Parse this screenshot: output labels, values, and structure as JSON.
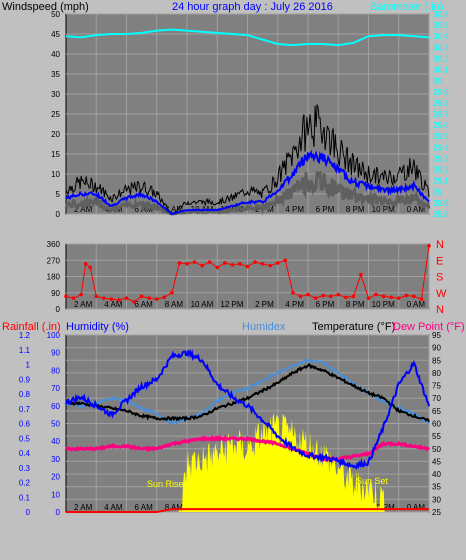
{
  "panel1": {
    "left_label": "Windspeed (mph)",
    "title": "24 hour graph day : July 26 2016",
    "right_label": "Barometer (.in)"
  },
  "panel3": {
    "rain_label": "Rainfall (.in)",
    "hum_label": "Humidity (%)",
    "humidex_label": "Humidex",
    "temp_label": "Temperature (°F)",
    "dew_label": "Dew Point (°F)",
    "sunrise_label": "Sun Rise",
    "sunset_label": "Sun Set"
  },
  "time_labels": [
    "2 AM",
    "4 AM",
    "6 AM",
    "8 AM",
    "10 AM",
    "12 PM",
    "2 PM",
    "4 PM",
    "6 PM",
    "8 PM",
    "10 PM",
    "0 AM"
  ],
  "colors": {
    "background": "#c0c0c0",
    "plot": "#808080",
    "wind_gust": "#000000",
    "wind_avg": "#0000ff",
    "wind_min": "#606060",
    "barometer": "#00ffff",
    "direction": "#ff0000",
    "humidity": "#0000ff",
    "humidex": "#4a8fd8",
    "temperature": "#000000",
    "dewpoint": "#ff0080",
    "solar": "#ffff00",
    "rain": "#ff0000"
  },
  "chart_data": [
    {
      "type": "line",
      "title": "24 hour graph day : July 26 2016",
      "xlabel": "",
      "x_ticks": [
        "2 AM",
        "4 AM",
        "6 AM",
        "8 AM",
        "10 AM",
        "12 PM",
        "2 PM",
        "4 PM",
        "6 PM",
        "8 PM",
        "10 PM",
        "0 AM"
      ],
      "x_hours": [
        0,
        1,
        2,
        3,
        4,
        5,
        6,
        7,
        8,
        9,
        10,
        11,
        12,
        13,
        14,
        15,
        16,
        17,
        18,
        19,
        20,
        21,
        22,
        23,
        24
      ],
      "left_axis": {
        "label": "Windspeed (mph)",
        "range": [
          0,
          50
        ],
        "ticks": [
          0,
          5,
          10,
          15,
          20,
          25,
          30,
          35,
          40,
          45,
          50
        ]
      },
      "right_axis": {
        "label": "Barometer (.in)",
        "range": [
          28.8,
          30.6
        ],
        "ticks": [
          "28.8",
          "28.9",
          "29",
          "29.1",
          "29.2",
          "29.3",
          "29.4",
          "29.5",
          "29.6",
          "29.7",
          "29.8",
          "29.9",
          "30",
          "30.1",
          "30.2",
          "30.3",
          "30.4",
          "30.5",
          "30.6"
        ]
      },
      "series": [
        {
          "name": "Windspeed (mph)",
          "axis": "left",
          "values": [
            6,
            8,
            7,
            4,
            6,
            7,
            5,
            0,
            3,
            3,
            3,
            4,
            6,
            5,
            9,
            15,
            22,
            22,
            16,
            12,
            10,
            9,
            10,
            12,
            5
          ]
        },
        {
          "name": "",
          "axis": "left",
          "values": [
            4,
            5,
            5,
            2,
            4,
            5,
            3,
            0,
            1,
            1,
            1,
            2,
            3,
            3,
            6,
            10,
            15,
            14,
            11,
            8,
            7,
            6,
            6,
            7,
            3
          ]
        },
        {
          "name": "Barometer (.in)",
          "axis": "right",
          "values": [
            30.4,
            30.39,
            30.41,
            30.42,
            30.42,
            30.43,
            30.45,
            30.46,
            30.45,
            30.44,
            30.43,
            30.42,
            30.41,
            30.37,
            30.33,
            30.32,
            30.33,
            30.33,
            30.32,
            30.34,
            30.4,
            30.41,
            30.41,
            30.4,
            30.39
          ]
        }
      ]
    },
    {
      "type": "scatter",
      "ylabel": "",
      "y_ticks": [
        0,
        90,
        180,
        270,
        360
      ],
      "y_range": [
        0,
        360
      ],
      "right_ticks": [
        "N",
        "W",
        "S",
        "E",
        "N"
      ],
      "series": [
        {
          "name": "",
          "x": [
            0,
            0.5,
            1,
            1.3,
            1.6,
            2,
            2.5,
            3,
            3.5,
            4,
            4.5,
            5,
            5.5,
            6,
            6.5,
            7,
            7.5,
            8,
            8.5,
            9,
            9.5,
            10,
            10.5,
            11,
            11.5,
            12,
            12.5,
            13,
            13.5,
            14,
            14.5,
            15,
            15.5,
            16,
            16.5,
            17,
            17.5,
            18,
            18.5,
            19,
            19.5,
            20,
            20.5,
            21,
            21.5,
            22,
            22.5,
            23,
            23.5,
            24
          ],
          "values": [
            70,
            60,
            80,
            250,
            230,
            70,
            60,
            55,
            50,
            60,
            40,
            70,
            60,
            55,
            65,
            90,
            255,
            250,
            260,
            240,
            260,
            230,
            255,
            245,
            250,
            235,
            260,
            250,
            240,
            255,
            270,
            90,
            70,
            80,
            60,
            75,
            70,
            80,
            65,
            70,
            190,
            60,
            80,
            70,
            65,
            60,
            75,
            70,
            55,
            350
          ]
        }
      ]
    },
    {
      "type": "line",
      "left_axes": [
        {
          "label": "Rainfall (.in)",
          "range": [
            0,
            1.2
          ],
          "ticks": [
            "0",
            "0.1",
            "0.2",
            "0.3",
            "0.4",
            "0.5",
            "0.6",
            "0.7",
            "0.8",
            "0.9",
            "1",
            "1.1",
            "1.2"
          ]
        },
        {
          "label": "Humidity (%)",
          "range": [
            0,
            100
          ],
          "ticks": [
            0,
            10,
            20,
            30,
            40,
            50,
            60,
            70,
            80,
            90,
            100
          ]
        }
      ],
      "right_axis": {
        "label": "Temperature (°F)",
        "range": [
          25,
          95
        ],
        "ticks": [
          25,
          30,
          35,
          40,
          45,
          50,
          55,
          60,
          65,
          70,
          75,
          80,
          85,
          90,
          95
        ]
      },
      "series": [
        {
          "name": "Humidity (%)",
          "axis": "humidity",
          "values": [
            62,
            65,
            60,
            55,
            63,
            71,
            75,
            88,
            90,
            86,
            72,
            65,
            60,
            52,
            43,
            36,
            32,
            31,
            29,
            26,
            28,
            48,
            72,
            84,
            60
          ]
        },
        {
          "name": "Humidex",
          "axis": "temp",
          "values": [
            68,
            67,
            68,
            70,
            69,
            66,
            64,
            60,
            62,
            64,
            69,
            72,
            74,
            77,
            80,
            83,
            85,
            84,
            80,
            76,
            72,
            69,
            66,
            64,
            60
          ]
        },
        {
          "name": "Temperature (°F)",
          "axis": "temp",
          "values": [
            68,
            68,
            67,
            66,
            65,
            63,
            62,
            62,
            62,
            63,
            66,
            68,
            70,
            73,
            76,
            80,
            83,
            81,
            78,
            75,
            72,
            70,
            65,
            63,
            61
          ]
        },
        {
          "name": "Dew Point (°F)",
          "axis": "temp",
          "values": [
            50,
            50,
            50,
            51,
            51,
            50,
            50,
            52,
            53,
            54,
            54,
            54,
            54,
            53,
            52,
            50,
            48,
            46,
            46,
            47,
            48,
            52,
            52,
            51,
            50
          ]
        },
        {
          "name": "",
          "axis": "temp",
          "type": "area",
          "values": [
            0,
            0,
            0,
            0,
            0,
            0,
            0,
            0,
            44,
            46,
            48,
            52,
            50,
            56,
            58,
            55,
            52,
            48,
            42,
            36,
            35,
            30,
            0,
            0,
            0
          ]
        },
        {
          "name": "Rainfall (.in)",
          "axis": "rain",
          "values": [
            0,
            0,
            0,
            0,
            0,
            0,
            0,
            0.02,
            0.02,
            0.02,
            0.02,
            0.02,
            0.02,
            0.02,
            0.02,
            0.02,
            0.02,
            0.02,
            0.02,
            0.02,
            0.02,
            0.02,
            0.02,
            0.02,
            0.02
          ]
        }
      ]
    }
  ]
}
